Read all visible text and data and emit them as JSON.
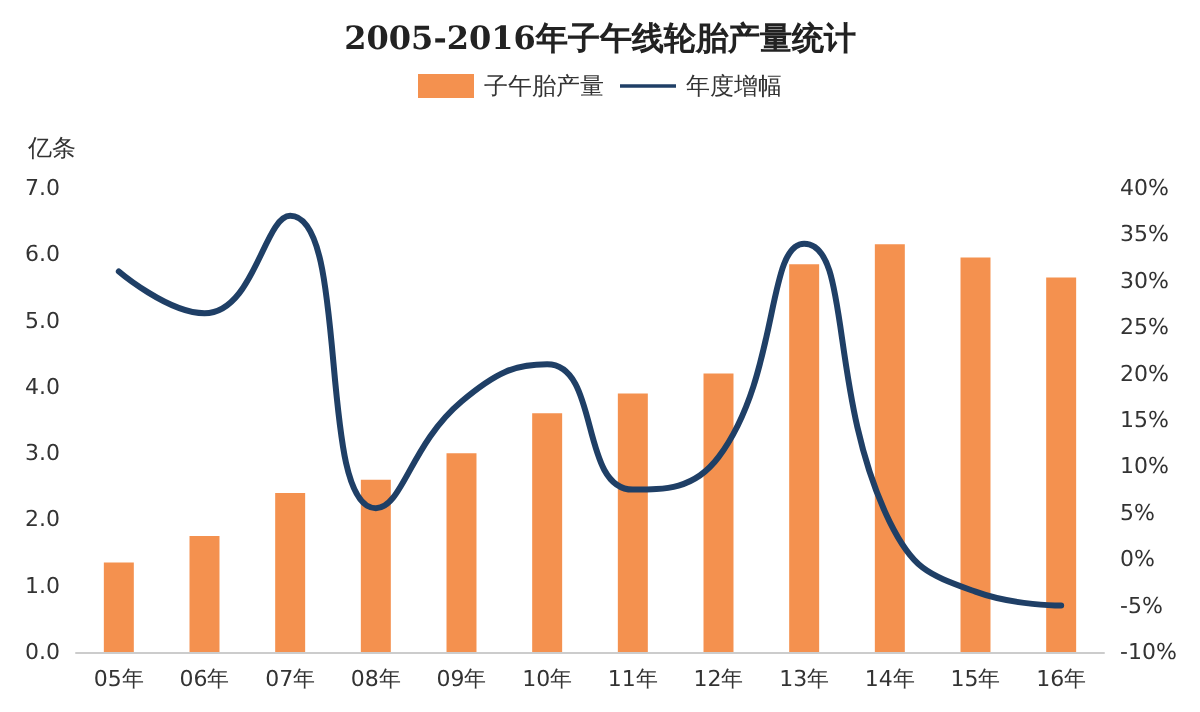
{
  "chart_data": {
    "type": "bar",
    "title": "2005-2016年子午线轮胎产量统计",
    "ylabel": "亿条",
    "categories": [
      "05年",
      "06年",
      "07年",
      "08年",
      "09年",
      "10年",
      "11年",
      "12年",
      "13年",
      "14年",
      "15年",
      "16年"
    ],
    "series": [
      {
        "name": "子午胎产量",
        "color": "#f4914f",
        "values": [
          1.35,
          1.75,
          2.4,
          2.6,
          3.0,
          3.6,
          3.9,
          4.2,
          5.85,
          6.15,
          5.95,
          5.65
        ]
      },
      {
        "name": "年度增幅",
        "type": "line",
        "axis": "y2",
        "color": "#1f3f66",
        "values": [
          31,
          26.5,
          37,
          5.5,
          17,
          21,
          7.5,
          11,
          34,
          4,
          -3.5,
          -5
        ]
      }
    ],
    "ylim": [
      0,
      7
    ],
    "yticks": [
      {
        "value": 0,
        "label": "0.0"
      },
      {
        "value": 1,
        "label": "1.0"
      },
      {
        "value": 2,
        "label": "2.0"
      },
      {
        "value": 3,
        "label": "3.0"
      },
      {
        "value": 4,
        "label": "4.0"
      },
      {
        "value": 5,
        "label": "5.0"
      },
      {
        "value": 6,
        "label": "6.0"
      },
      {
        "value": 7,
        "label": "7.0"
      }
    ],
    "y2lim": [
      -10,
      40
    ],
    "y2ticks": [
      {
        "value": -10,
        "label": "-10%"
      },
      {
        "value": -5,
        "label": "-5%"
      },
      {
        "value": 0,
        "label": "0%"
      },
      {
        "value": 5,
        "label": "5%"
      },
      {
        "value": 10,
        "label": "10%"
      },
      {
        "value": 15,
        "label": "15%"
      },
      {
        "value": 20,
        "label": "20%"
      },
      {
        "value": 25,
        "label": "25%"
      },
      {
        "value": 30,
        "label": "30%"
      },
      {
        "value": 35,
        "label": "35%"
      },
      {
        "value": 40,
        "label": "40%"
      }
    ],
    "grid": false,
    "legend": "top",
    "marker": "none",
    "line_style": "solid"
  }
}
